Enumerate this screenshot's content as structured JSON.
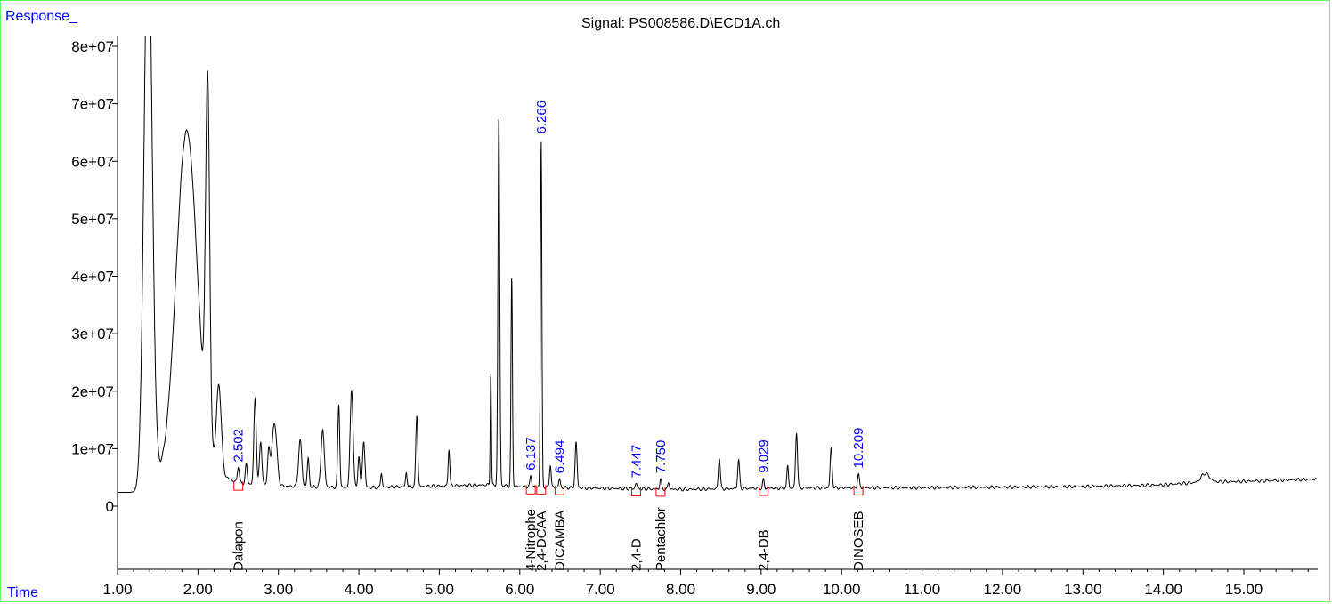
{
  "chart_data": {
    "type": "line",
    "title": "Signal: PS008586.D\\ECD1A.ch",
    "ylabel": "Response_",
    "xlabel": "Time",
    "xlim": [
      1.0,
      15.9
    ],
    "ylim": [
      -10000000,
      82000000
    ],
    "x_ticks": [
      1.0,
      2.0,
      3.0,
      4.0,
      5.0,
      6.0,
      7.0,
      8.0,
      9.0,
      10.0,
      11.0,
      12.0,
      13.0,
      14.0,
      15.0
    ],
    "x_tick_labels": [
      "1.00",
      "2.00",
      "3.00",
      "4.00",
      "5.00",
      "6.00",
      "7.00",
      "8.00",
      "9.00",
      "10.00",
      "11.00",
      "12.00",
      "13.00",
      "14.00",
      "15.00"
    ],
    "y_ticks": [
      0,
      10000000,
      20000000,
      30000000,
      40000000,
      50000000,
      60000000,
      70000000,
      80000000
    ],
    "y_tick_labels": [
      "0",
      "1e+07",
      "2e+07",
      "3e+07",
      "4e+07",
      "5e+07",
      "6e+07",
      "7e+07",
      "8e+07"
    ],
    "grid": false,
    "baseline": [
      [
        1.0,
        2400000
      ],
      [
        1.3,
        2400000
      ],
      [
        1.5,
        4500000
      ],
      [
        2.2,
        6000000
      ],
      [
        2.5,
        4000000
      ],
      [
        3.0,
        3500000
      ],
      [
        4.0,
        3200000
      ],
      [
        5.0,
        3500000
      ],
      [
        5.6,
        3700000
      ],
      [
        6.0,
        3400000
      ],
      [
        6.6,
        3200000
      ],
      [
        7.0,
        3100000
      ],
      [
        8.0,
        2900000
      ],
      [
        9.0,
        3100000
      ],
      [
        10.0,
        3200000
      ],
      [
        11.0,
        3200000
      ],
      [
        12.0,
        3300000
      ],
      [
        13.0,
        3400000
      ],
      [
        14.0,
        3700000
      ],
      [
        14.5,
        4200000
      ],
      [
        15.0,
        4300000
      ],
      [
        15.9,
        4700000
      ]
    ],
    "peaks": [
      {
        "rt": 1.38,
        "height": 100000000,
        "width": 0.05
      },
      {
        "rt": 1.86,
        "height": 60000000,
        "width": 0.13
      },
      {
        "rt": 2.12,
        "height": 62000000,
        "width": 0.025
      },
      {
        "rt": 2.26,
        "height": 15000000,
        "width": 0.03
      },
      {
        "rt": 2.502,
        "height": 3000000,
        "width": 0.012
      },
      {
        "rt": 2.6,
        "height": 3500000,
        "width": 0.012
      },
      {
        "rt": 2.71,
        "height": 15000000,
        "width": 0.015
      },
      {
        "rt": 2.78,
        "height": 7500000,
        "width": 0.015
      },
      {
        "rt": 2.88,
        "height": 6000000,
        "width": 0.015
      },
      {
        "rt": 2.95,
        "height": 11000000,
        "width": 0.03
      },
      {
        "rt": 3.27,
        "height": 8000000,
        "width": 0.02
      },
      {
        "rt": 3.37,
        "height": 5000000,
        "width": 0.012
      },
      {
        "rt": 3.55,
        "height": 10000000,
        "width": 0.02
      },
      {
        "rt": 3.75,
        "height": 14500000,
        "width": 0.012
      },
      {
        "rt": 3.91,
        "height": 17000000,
        "width": 0.018
      },
      {
        "rt": 4.0,
        "height": 5500000,
        "width": 0.012
      },
      {
        "rt": 4.06,
        "height": 8000000,
        "width": 0.015
      },
      {
        "rt": 4.28,
        "height": 2500000,
        "width": 0.01
      },
      {
        "rt": 4.59,
        "height": 2500000,
        "width": 0.01
      },
      {
        "rt": 4.72,
        "height": 12500000,
        "width": 0.012
      },
      {
        "rt": 5.12,
        "height": 6500000,
        "width": 0.01
      },
      {
        "rt": 5.64,
        "height": 20000000,
        "width": 0.007
      },
      {
        "rt": 5.74,
        "height": 64500000,
        "width": 0.011
      },
      {
        "rt": 5.9,
        "height": 36500000,
        "width": 0.009
      },
      {
        "rt": 6.137,
        "height": 2000000,
        "width": 0.01
      },
      {
        "rt": 6.266,
        "height": 60500000,
        "width": 0.009
      },
      {
        "rt": 6.38,
        "height": 4000000,
        "width": 0.01
      },
      {
        "rt": 6.494,
        "height": 1500000,
        "width": 0.01
      },
      {
        "rt": 6.7,
        "height": 8000000,
        "width": 0.012
      },
      {
        "rt": 7.447,
        "height": 1000000,
        "width": 0.012
      },
      {
        "rt": 7.75,
        "height": 1800000,
        "width": 0.01
      },
      {
        "rt": 7.85,
        "height": 1200000,
        "width": 0.01
      },
      {
        "rt": 8.48,
        "height": 5500000,
        "width": 0.012
      },
      {
        "rt": 8.72,
        "height": 5000000,
        "width": 0.012
      },
      {
        "rt": 9.029,
        "height": 1500000,
        "width": 0.01
      },
      {
        "rt": 9.33,
        "height": 4000000,
        "width": 0.01
      },
      {
        "rt": 9.44,
        "height": 9800000,
        "width": 0.012
      },
      {
        "rt": 9.87,
        "height": 6900000,
        "width": 0.012
      },
      {
        "rt": 10.209,
        "height": 2300000,
        "width": 0.012
      },
      {
        "rt": 14.52,
        "height": 1500000,
        "width": 0.05
      }
    ],
    "integrated_peaks": [
      {
        "rt": "2.502",
        "compound": "Dalapon"
      },
      {
        "rt": "6.137",
        "compound": "4-Nitrophe"
      },
      {
        "rt": "6.266",
        "compound": "2,4-DCAA"
      },
      {
        "rt": "6.494",
        "compound": "DICAMBA"
      },
      {
        "rt": "7.447",
        "compound": "2,4-D"
      },
      {
        "rt": "7.750",
        "compound": "Pentachlor"
      },
      {
        "rt": "9.029",
        "compound": "2,4-DB"
      },
      {
        "rt": "10.209",
        "compound": "DINOSEB"
      }
    ],
    "colors": {
      "trace": "#000000",
      "rt_labels": "#0000ff",
      "axis_titles": "#0000ff",
      "integration": "#ff0000",
      "frame": "#66ff66"
    }
  }
}
